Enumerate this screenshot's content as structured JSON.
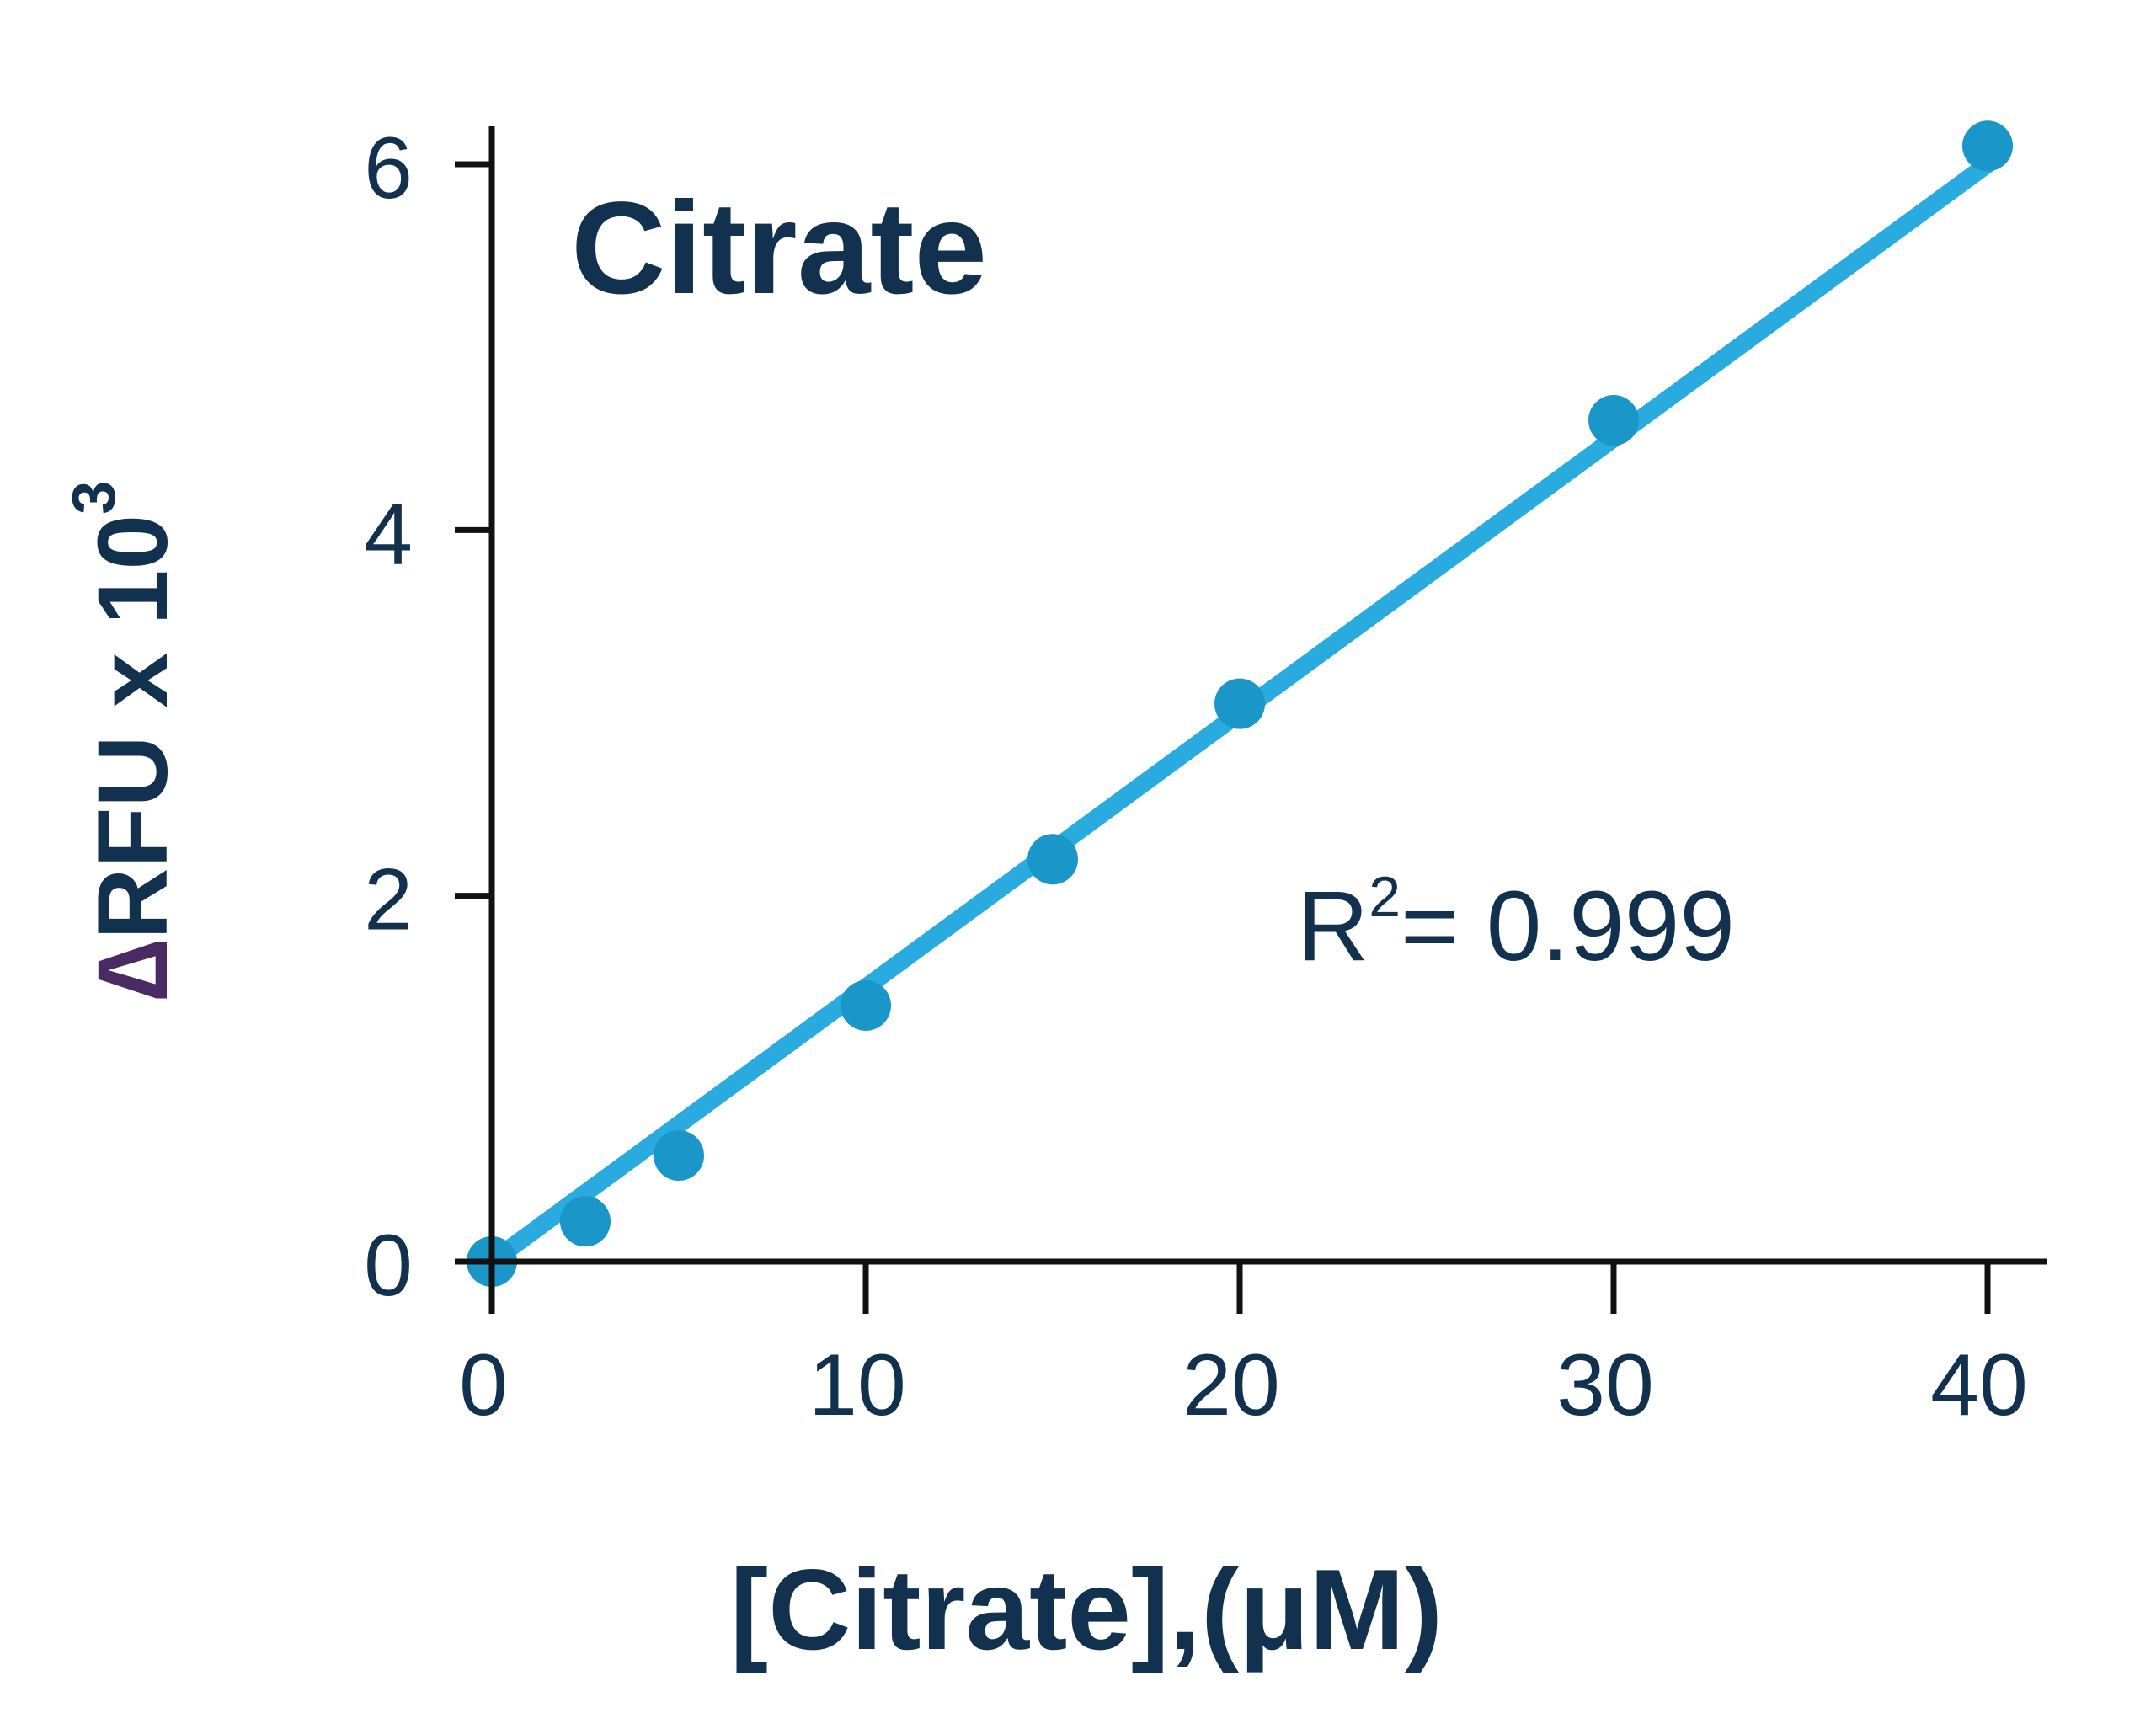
{
  "chart_data": {
    "type": "scatter",
    "title": "Citrate",
    "xlabel": "[Citrate],(μM)",
    "ylabel_parts": {
      "delta": "∆",
      "text": "RFU x 10",
      "exponent": "3"
    },
    "annotation": {
      "base": "R",
      "exponent": "2",
      "text": "= 0.999"
    },
    "xlim": [
      0,
      40
    ],
    "ylim": [
      0,
      6
    ],
    "xticks": [
      0,
      10,
      20,
      30,
      40
    ],
    "xtick_labels": [
      "0",
      "10",
      "20",
      "30",
      "40"
    ],
    "yticks": [
      0,
      2,
      4,
      6
    ],
    "ytick_labels": [
      "0",
      "2",
      "4",
      "6"
    ],
    "grid": false,
    "legend": "none",
    "series": [
      {
        "x": [
          0,
          2.5,
          5,
          10,
          15,
          20,
          30,
          40
        ],
        "y": [
          0.0,
          0.22,
          0.58,
          1.4,
          2.2,
          3.05,
          4.6,
          6.1
        ]
      }
    ],
    "fit_line": {
      "x": [
        0,
        40
      ],
      "y": [
        0.0,
        6.0
      ]
    },
    "colors": {
      "point": "#1a96c9",
      "fit": "#29abe0",
      "axis": "#111111",
      "text": "#11314f",
      "delta": "#4a2a63"
    }
  }
}
